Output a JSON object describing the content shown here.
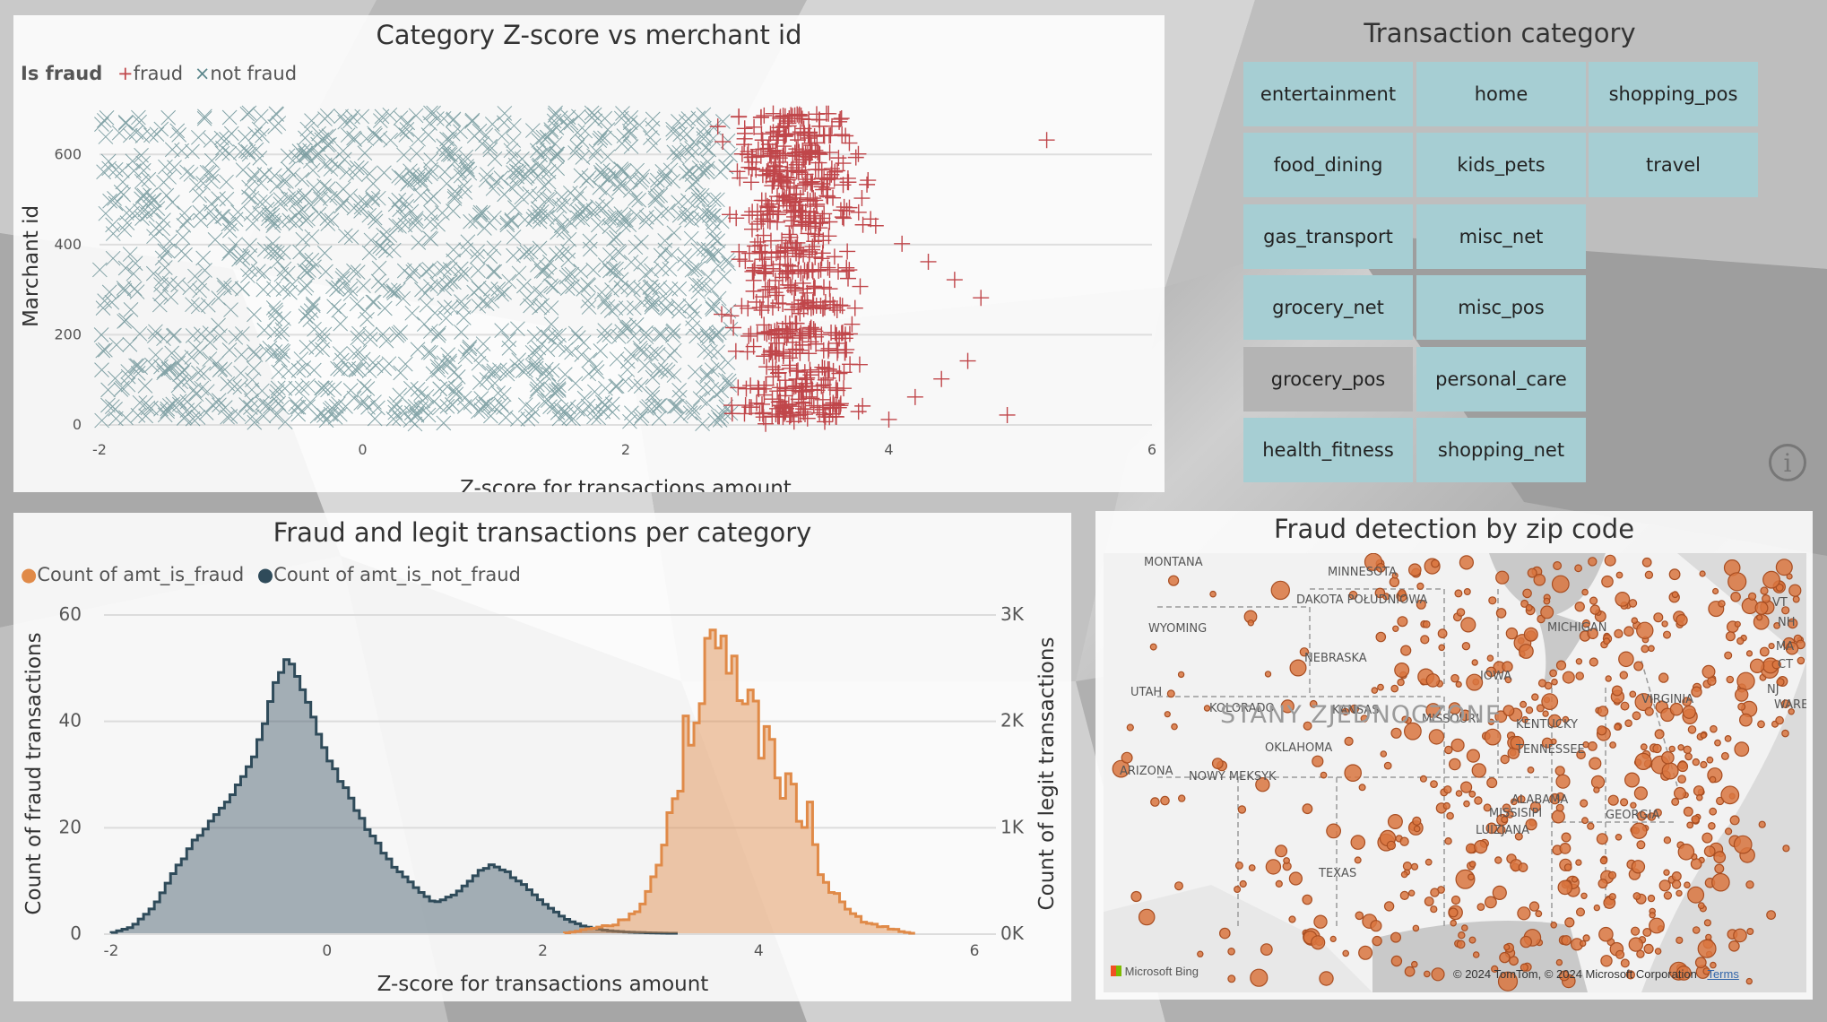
{
  "scatter": {
    "title": "Category Z-score vs merchant id",
    "legend_title": "Is fraud",
    "legend_fraud": "fraud",
    "legend_not_fraud": "not fraud",
    "fraud_color": "#c0464a",
    "not_fraud_color": "#5c878c"
  },
  "slicer": {
    "title": "Transaction category",
    "items": [
      {
        "label": "entertainment",
        "selected": false
      },
      {
        "label": "home",
        "selected": false
      },
      {
        "label": "shopping_pos",
        "selected": false
      },
      {
        "label": "food_dining",
        "selected": false
      },
      {
        "label": "kids_pets",
        "selected": false
      },
      {
        "label": "travel",
        "selected": false
      },
      {
        "label": "gas_transport",
        "selected": false
      },
      {
        "label": "misc_net",
        "selected": false
      },
      {
        "label": "grocery_net",
        "selected": false
      },
      {
        "label": "misc_pos",
        "selected": false
      },
      {
        "label": "grocery_pos",
        "selected": true
      },
      {
        "label": "personal_care",
        "selected": false
      },
      {
        "label": "health_fitness",
        "selected": false
      },
      {
        "label": "shopping_net",
        "selected": false
      }
    ],
    "tile_color": "#a6ced3",
    "selected_color": "#b4b4b4"
  },
  "histogram": {
    "title": "Fraud and legit transactions per category",
    "legend_fraud": "Count of amt_is_fraud",
    "legend_not_fraud": "Count of amt_is_not_fraud",
    "fraud_color": "#e08a48",
    "not_fraud_color": "#2f4b5a"
  },
  "map": {
    "title": "Fraud detection by zip code",
    "country_label": "STANY ZJEDNOCZONE",
    "state_labels": [
      "MONTANA",
      "MINNESOTA",
      "DAKOTA POŁUDNIOWA",
      "WYOMING",
      "UTAH",
      "KOLORADO",
      "KANSAS",
      "MISSOURI",
      "ARIZONA",
      "NOWY MEKSYK",
      "TENNESSEE",
      "ALABAMA",
      "MISSISIPI",
      "LUIZJANA",
      "MICHIGAN",
      "NEBRASKA",
      "KENTUCKY",
      "VIRGINIA",
      "GEORGIA",
      "VT",
      "NH",
      "MA",
      "CT",
      "NJ",
      "WARE",
      "OKLAHOMA",
      "TEXAS",
      "IOWA"
    ],
    "bing_label": "Microsoft Bing",
    "copyright": "© 2024 TomTom, © 2024 Microsoft Corporation",
    "terms_label": "Terms",
    "bubble_color": "#d9753f"
  },
  "chart_data": [
    {
      "type": "scatter",
      "title": "Category Z-score vs merchant id",
      "xlabel": "Z-score for transactions amount",
      "ylabel": "Marchant id",
      "xlim": [
        -2,
        6
      ],
      "ylim": [
        0,
        700
      ],
      "xticks": [
        -2,
        0,
        2,
        4,
        6
      ],
      "yticks": [
        0,
        200,
        400,
        600
      ],
      "grid": true,
      "legend_position": "top-left",
      "series": [
        {
          "name": "fraud",
          "marker": "plus",
          "x_range": [
            2.6,
            5.3
          ],
          "y_range": [
            0,
            693
          ],
          "x": [
            2.7,
            2.9,
            3.1,
            3.3,
            3.5,
            3.7,
            3.9,
            4.1,
            4.3,
            4.5,
            4.7,
            5.2,
            2.8,
            3.0,
            3.2,
            3.4,
            3.6,
            3.8,
            4.0,
            4.2,
            4.4,
            4.6,
            4.9
          ],
          "y": [
            660,
            620,
            600,
            560,
            520,
            480,
            440,
            400,
            360,
            320,
            280,
            630,
            240,
            200,
            160,
            120,
            80,
            40,
            10,
            60,
            100,
            140,
            20
          ]
        },
        {
          "name": "not fraud",
          "marker": "x",
          "x_range": [
            -2.0,
            2.8
          ],
          "y_range": [
            0,
            693
          ]
        }
      ]
    },
    {
      "type": "area",
      "title": "Fraud and legit transactions per category",
      "xlabel": "Z-score for transactions amount",
      "ylabel": "Count of fraud transactions",
      "y2label": "Count of legit transactions",
      "xlim": [
        -2,
        6
      ],
      "xticks": [
        -2,
        0,
        2,
        4,
        6
      ],
      "ylim": [
        0,
        60
      ],
      "yticks": [
        0,
        20,
        40,
        60
      ],
      "y2lim": [
        0,
        3000
      ],
      "y2ticks": [
        "0K",
        "1K",
        "2K",
        "3K"
      ],
      "legend_position": "top-left",
      "series": [
        {
          "name": "Count of amt_is_not_fraud",
          "axis": "y2",
          "x": [
            -2.0,
            -1.8,
            -1.6,
            -1.4,
            -1.2,
            -1.0,
            -0.8,
            -0.6,
            -0.5,
            -0.4,
            -0.3,
            -0.2,
            -0.1,
            0.0,
            0.2,
            0.4,
            0.6,
            0.8,
            1.0,
            1.2,
            1.4,
            1.5,
            1.6,
            1.8,
            2.0,
            2.2,
            2.4,
            2.6,
            2.8,
            3.0,
            3.2
          ],
          "values": [
            0,
            60,
            250,
            600,
            900,
            1150,
            1400,
            1850,
            2300,
            2550,
            2500,
            2250,
            1950,
            1650,
            1300,
            950,
            650,
            450,
            280,
            370,
            570,
            640,
            620,
            480,
            290,
            140,
            60,
            25,
            10,
            4,
            0
          ]
        },
        {
          "name": "Count of amt_is_fraud",
          "axis": "y",
          "x": [
            2.2,
            2.5,
            2.7,
            2.9,
            3.0,
            3.1,
            3.2,
            3.3,
            3.4,
            3.5,
            3.6,
            3.7,
            3.8,
            3.9,
            4.0,
            4.1,
            4.2,
            4.3,
            4.4,
            4.5,
            4.6,
            4.7,
            4.8,
            4.9,
            5.0,
            5.2,
            5.4
          ],
          "values": [
            0,
            1,
            2,
            4,
            10,
            17,
            25,
            34,
            44,
            50,
            54,
            48,
            46,
            44,
            38,
            35,
            28,
            26,
            24,
            23,
            10,
            7,
            6,
            3,
            2,
            1,
            0
          ]
        }
      ]
    },
    {
      "type": "scatter",
      "title": "Fraud detection by zip code",
      "note": "bubble map of fraud counts by zip code across the United States"
    }
  ]
}
